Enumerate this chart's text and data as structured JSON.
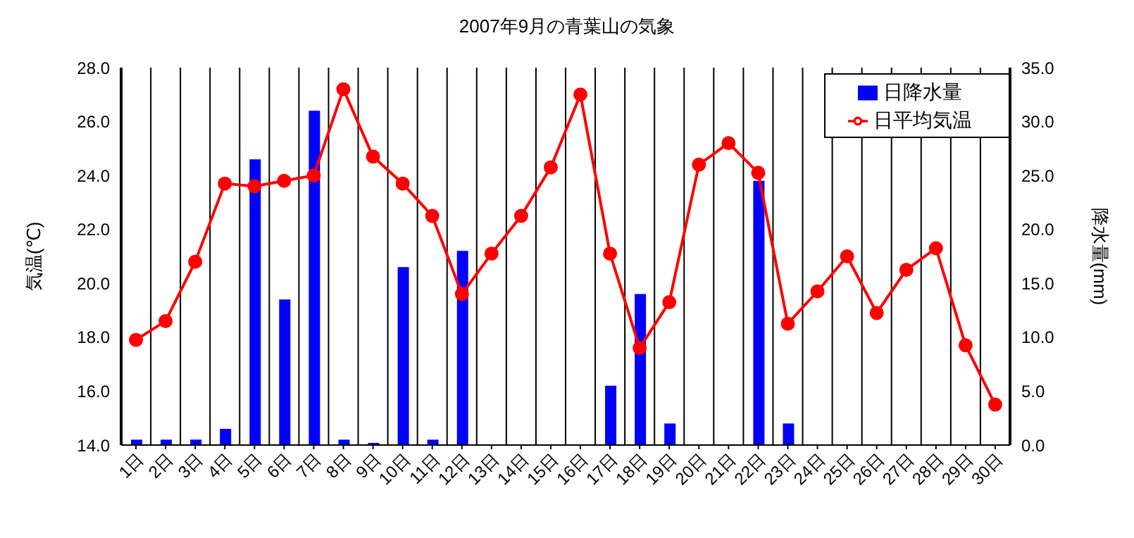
{
  "chart_data": {
    "type": "bar",
    "title": "2007年9月の青葉山の気象",
    "ylabel": "気温(℃)",
    "y2label": "降水量(mm)",
    "categories": [
      "1日",
      "2日",
      "3日",
      "4日",
      "5日",
      "6日",
      "7日",
      "8日",
      "9日",
      "10日",
      "11日",
      "12日",
      "13日",
      "14日",
      "15日",
      "16日",
      "17日",
      "18日",
      "19日",
      "20日",
      "21日",
      "22日",
      "23日",
      "24日",
      "25日",
      "26日",
      "27日",
      "28日",
      "29日",
      "30日"
    ],
    "series": [
      {
        "name": "日降水量",
        "axis": "y2",
        "color": "#0000ff",
        "values": [
          0.5,
          0.5,
          0.5,
          1.5,
          26.5,
          13.5,
          31.0,
          0.5,
          0.2,
          16.5,
          0.5,
          18.0,
          0,
          0,
          0,
          0,
          5.5,
          14.0,
          2.0,
          0,
          0,
          24.5,
          2.0,
          0,
          0,
          0,
          0,
          0,
          0,
          0
        ]
      },
      {
        "name": "日平均気温",
        "type": "line",
        "color": "#ff0000",
        "values": [
          17.9,
          18.6,
          20.8,
          23.7,
          23.6,
          23.8,
          24.0,
          27.2,
          24.7,
          23.7,
          22.5,
          19.6,
          21.1,
          22.5,
          24.3,
          27.0,
          21.1,
          17.6,
          19.3,
          24.4,
          25.2,
          24.1,
          18.5,
          19.7,
          21.0,
          18.9,
          20.5,
          21.3,
          17.7,
          15.5
        ]
      }
    ],
    "ylim": [
      14,
      28
    ],
    "yticks": [
      {
        "value": 14,
        "label": "14.0"
      },
      {
        "value": 16,
        "label": "16.0"
      },
      {
        "value": 18,
        "label": "18.0"
      },
      {
        "value": 20,
        "label": "20.0"
      },
      {
        "value": 22,
        "label": "22.0"
      },
      {
        "value": 24,
        "label": "24.0"
      },
      {
        "value": 26,
        "label": "26.0"
      },
      {
        "value": 28,
        "label": "28.0"
      }
    ],
    "y2lim": [
      0,
      35
    ],
    "y2ticks": [
      {
        "value": 0,
        "label": "0.0"
      },
      {
        "value": 5,
        "label": "5.0"
      },
      {
        "value": 10,
        "label": "10.0"
      },
      {
        "value": 15,
        "label": "15.0"
      },
      {
        "value": 20,
        "label": "20.0"
      },
      {
        "value": 25,
        "label": "25.0"
      },
      {
        "value": 30,
        "label": "30.0"
      },
      {
        "value": 35,
        "label": "35.0"
      }
    ],
    "grid": true,
    "legend": "top right",
    "marker": "circle",
    "line_style": "solid"
  }
}
